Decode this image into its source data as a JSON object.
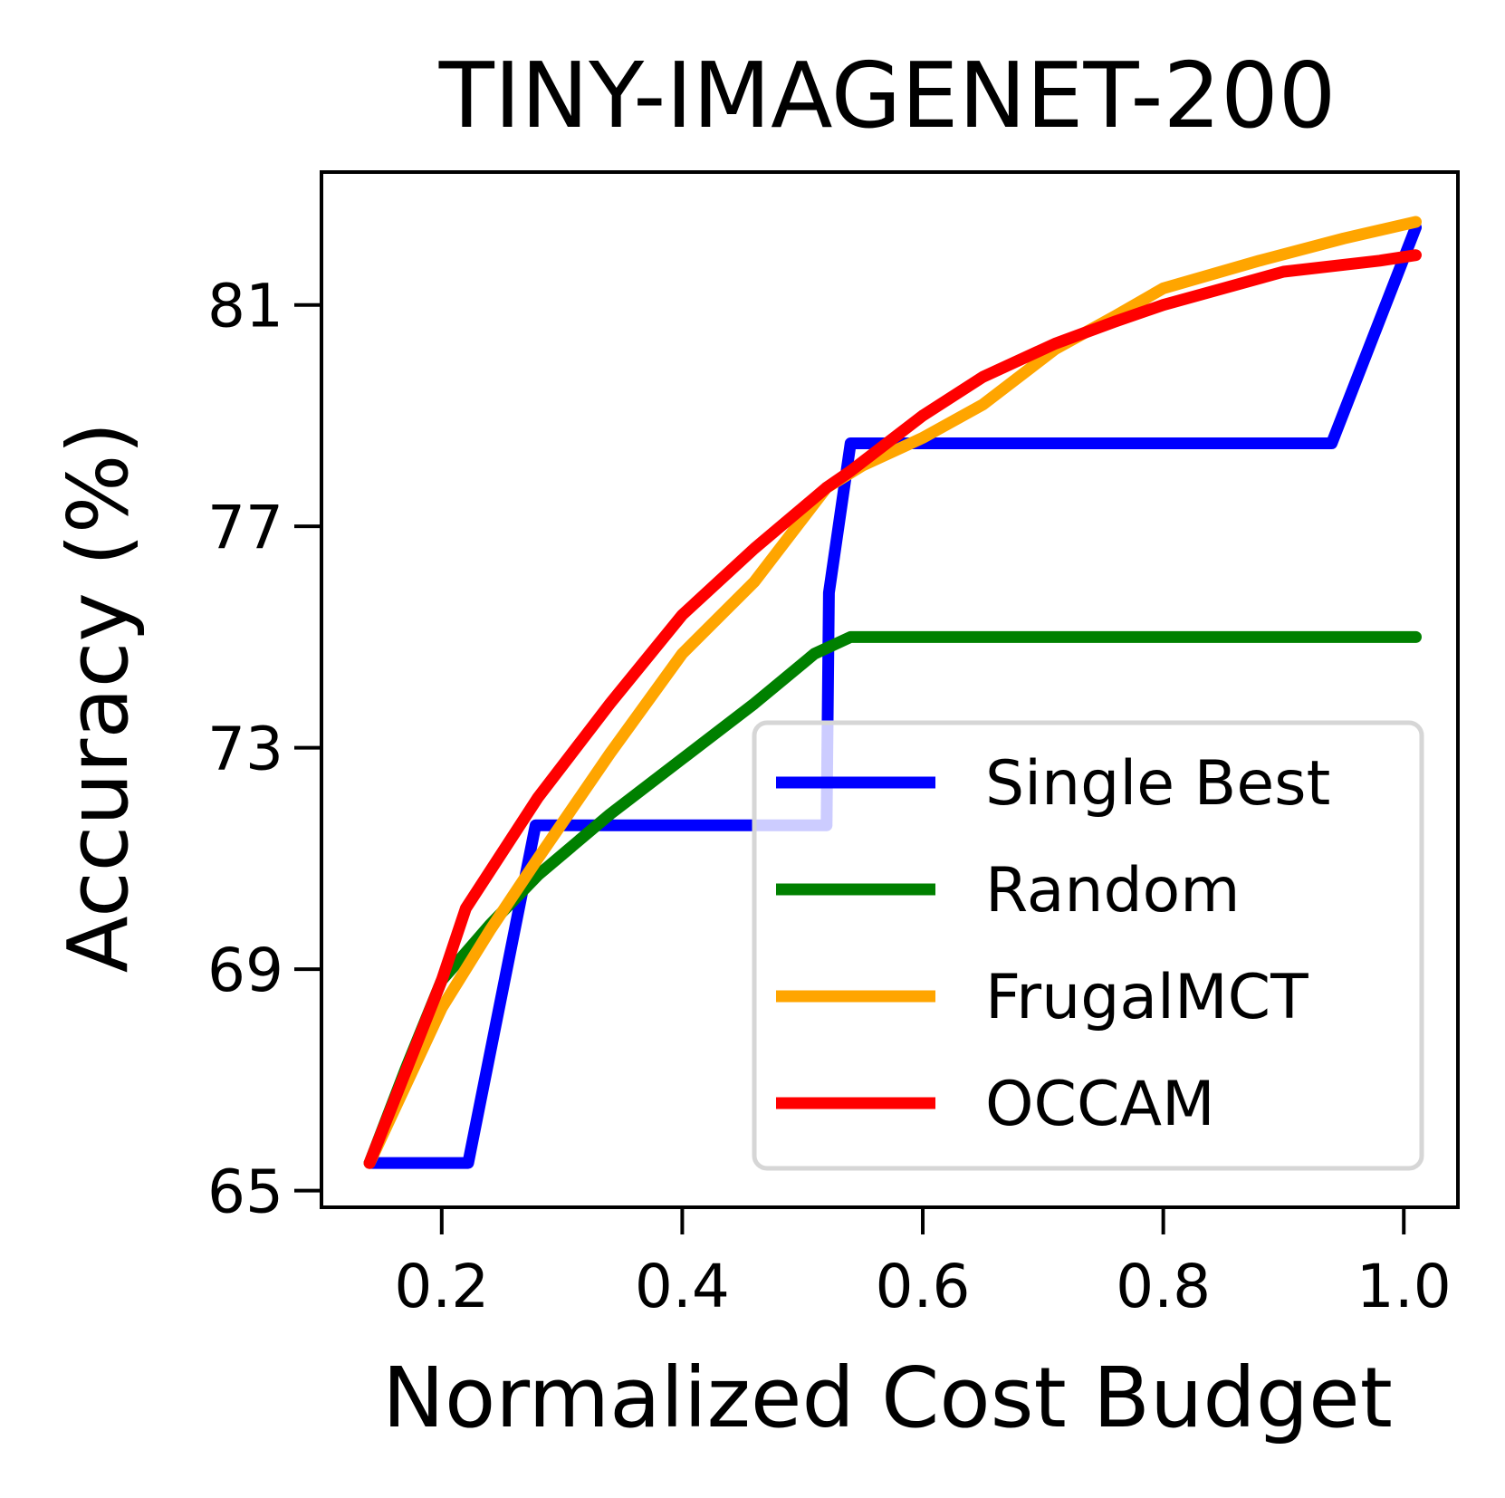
{
  "chart_data": {
    "type": "line",
    "title": "TINY-IMAGENET-200",
    "xlabel": "Normalized Cost Budget",
    "ylabel": "Accuracy (%)",
    "xlim": [
      0.1,
      1.045
    ],
    "ylim": [
      64.7,
      83.4
    ],
    "xticks": [
      0.2,
      0.4,
      0.6,
      0.8,
      1.0
    ],
    "xtick_labels": [
      "0.2",
      "0.4",
      "0.6",
      "0.8",
      "1.0"
    ],
    "yticks": [
      65,
      69,
      73,
      77,
      81
    ],
    "ytick_labels": [
      "65",
      "69",
      "73",
      "77",
      "81"
    ],
    "grid": false,
    "legend_position": "lower-right",
    "series": [
      {
        "name": "Single Best",
        "color": "#0000ff",
        "points": [
          [
            0.14,
            65.5
          ],
          [
            0.222,
            65.5
          ],
          [
            0.278,
            71.6
          ],
          [
            0.52,
            71.6
          ],
          [
            0.522,
            75.8
          ],
          [
            0.54,
            78.5
          ],
          [
            0.94,
            78.5
          ],
          [
            1.01,
            82.4
          ]
        ]
      },
      {
        "name": "Random",
        "color": "#008000",
        "points": [
          [
            0.14,
            65.5
          ],
          [
            0.17,
            67.2
          ],
          [
            0.2,
            68.8
          ],
          [
            0.24,
            69.8
          ],
          [
            0.28,
            70.7
          ],
          [
            0.34,
            71.8
          ],
          [
            0.4,
            72.8
          ],
          [
            0.46,
            73.8
          ],
          [
            0.51,
            74.7
          ],
          [
            0.54,
            75.0
          ],
          [
            1.01,
            75.0
          ]
        ]
      },
      {
        "name": "FrugalMCT",
        "color": "#ffa500",
        "points": [
          [
            0.14,
            65.5
          ],
          [
            0.2,
            68.3
          ],
          [
            0.24,
            69.7
          ],
          [
            0.28,
            71.0
          ],
          [
            0.34,
            72.9
          ],
          [
            0.4,
            74.7
          ],
          [
            0.46,
            76.0
          ],
          [
            0.52,
            77.7
          ],
          [
            0.55,
            78.1
          ],
          [
            0.6,
            78.6
          ],
          [
            0.65,
            79.2
          ],
          [
            0.71,
            80.2
          ],
          [
            0.76,
            80.8
          ],
          [
            0.8,
            81.3
          ],
          [
            0.88,
            81.8
          ],
          [
            0.95,
            82.2
          ],
          [
            1.01,
            82.5
          ]
        ]
      },
      {
        "name": "OCCAM",
        "color": "#ff0000",
        "points": [
          [
            0.14,
            65.5
          ],
          [
            0.2,
            68.8
          ],
          [
            0.22,
            70.1
          ],
          [
            0.28,
            72.1
          ],
          [
            0.34,
            73.8
          ],
          [
            0.4,
            75.4
          ],
          [
            0.46,
            76.6
          ],
          [
            0.52,
            77.7
          ],
          [
            0.54,
            78.0
          ],
          [
            0.6,
            79.0
          ],
          [
            0.65,
            79.7
          ],
          [
            0.71,
            80.3
          ],
          [
            0.76,
            80.7
          ],
          [
            0.8,
            81.0
          ],
          [
            0.85,
            81.3
          ],
          [
            0.9,
            81.6
          ],
          [
            0.98,
            81.8
          ],
          [
            1.01,
            81.9
          ]
        ]
      }
    ]
  }
}
